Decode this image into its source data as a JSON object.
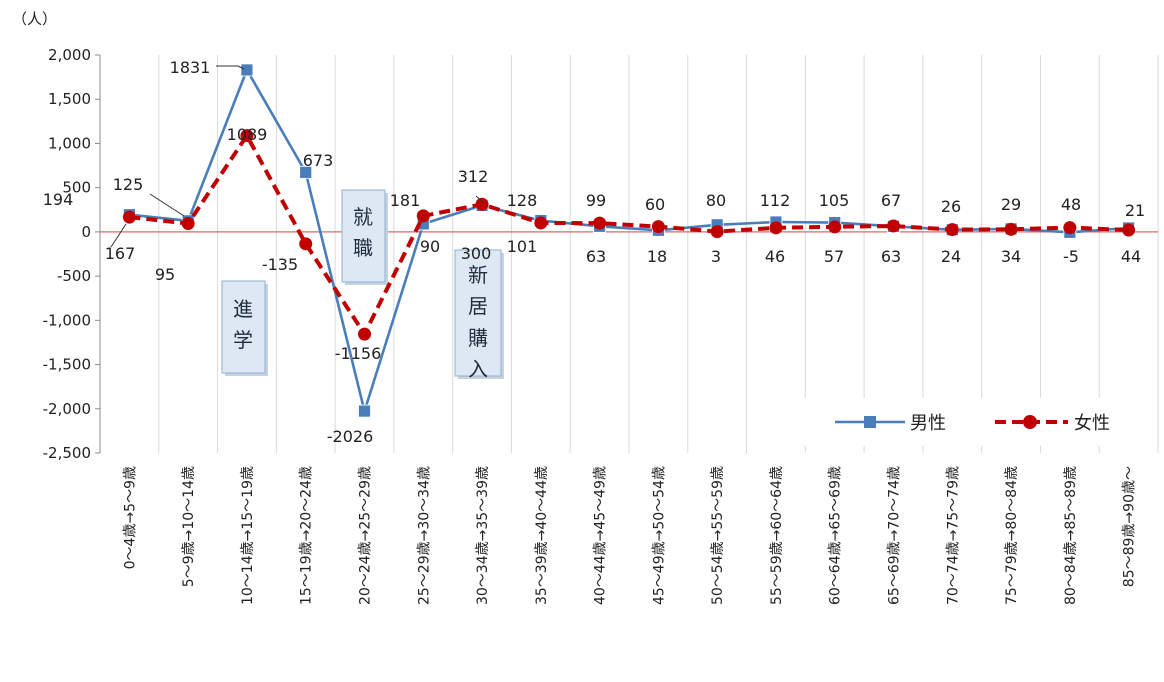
{
  "chart_data": {
    "type": "line",
    "unit_label": "（人）",
    "ylim": [
      -2500,
      2000
    ],
    "yticks": [
      "2,000",
      "1,500",
      "1,000",
      "500",
      "0",
      "-500",
      "-1,000",
      "-1,500",
      "-2,000",
      "-2,500"
    ],
    "ytick_values": [
      2000,
      1500,
      1000,
      500,
      0,
      -500,
      -1000,
      -1500,
      -2000,
      -2500
    ],
    "grid": "vertical",
    "legend_position": "bottom-right",
    "categories": [
      "0～4歳→5～9歳",
      "5～9歳→10～14歳",
      "10～14歳→15～19歳",
      "15～19歳→20～24歳",
      "20～24歳→25～29歳",
      "25～29歳→30～34歳",
      "30～34歳→35～39歳",
      "35～39歳→40～44歳",
      "40～44歳→45～49歳",
      "45～49歳→50～54歳",
      "50～54歳→55～59歳",
      "55～59歳→60～64歳",
      "60～64歳→65～69歳",
      "65～69歳→70～74歳",
      "70～74歳→75～79歳",
      "75～79歳→80～84歳",
      "80～84歳→85～89歳",
      "85～89歳→90歳～"
    ],
    "series": [
      {
        "name": "男性",
        "color": "#4a7ebb",
        "style": "solid",
        "marker": "square",
        "values": [
          194,
          125,
          1831,
          673,
          -2026,
          90,
          300,
          128,
          63,
          18,
          80,
          112,
          105,
          63,
          24,
          34,
          -5,
          44
        ],
        "labels": [
          "194",
          "125",
          "1831",
          "673",
          "-2026",
          "90",
          "300",
          "128",
          "63",
          "18",
          "80",
          "112",
          "105",
          "63",
          "24",
          "34",
          "-5",
          "44"
        ]
      },
      {
        "name": "女性",
        "color": "#c00000",
        "style": "dashed",
        "marker": "circle",
        "values": [
          167,
          95,
          1089,
          -135,
          -1156,
          181,
          312,
          101,
          99,
          60,
          3,
          46,
          57,
          67,
          26,
          29,
          48,
          21
        ],
        "labels": [
          "167",
          "95",
          "1089",
          "-135",
          "-1156",
          "181",
          "312",
          "101",
          "99",
          "60",
          "3",
          "46",
          "57",
          "67",
          "26",
          "29",
          "48",
          "21"
        ]
      }
    ],
    "annotations": [
      {
        "text": "進学"
      },
      {
        "text": "就職"
      },
      {
        "text": "新居購入"
      }
    ]
  }
}
